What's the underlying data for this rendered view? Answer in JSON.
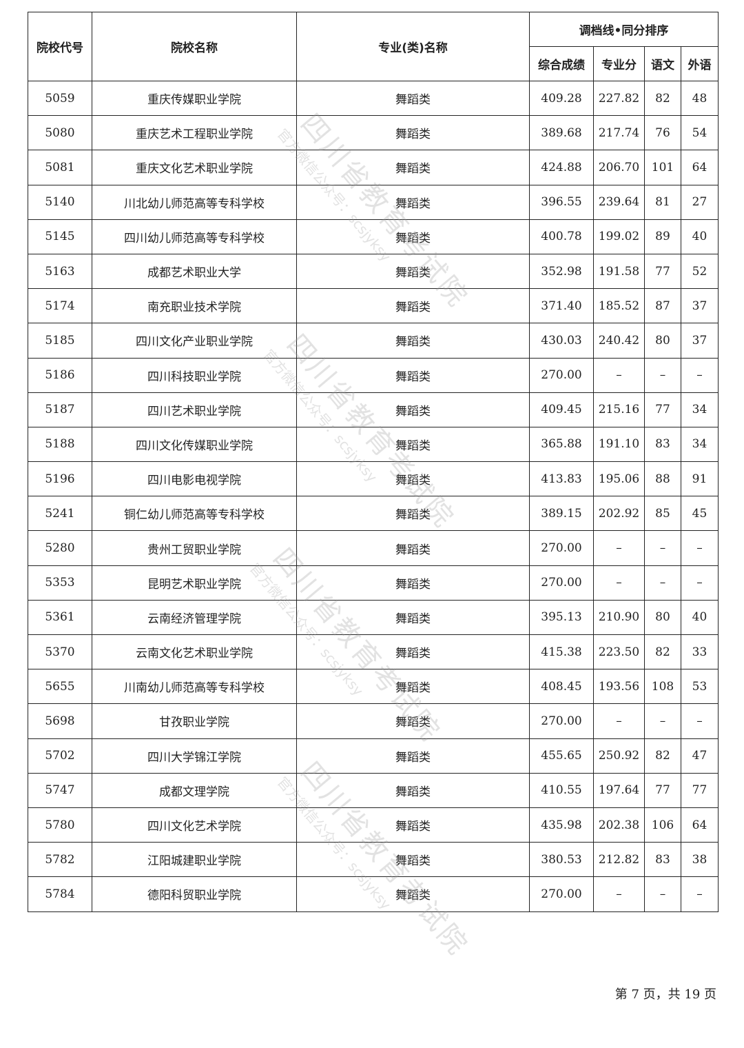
{
  "table": {
    "headers": {
      "code": "院校代号",
      "name": "院校名称",
      "major": "专业(类)名称",
      "group": "调档线•同分排序",
      "total": "综合成绩",
      "professional": "专业分",
      "chinese": "语文",
      "foreign": "外语"
    },
    "rows": [
      {
        "code": "5059",
        "name": "重庆传媒职业学院",
        "major": "舞蹈类",
        "total": "409.28",
        "professional": "227.82",
        "chinese": "82",
        "foreign": "48"
      },
      {
        "code": "5080",
        "name": "重庆艺术工程职业学院",
        "major": "舞蹈类",
        "total": "389.68",
        "professional": "217.74",
        "chinese": "76",
        "foreign": "54"
      },
      {
        "code": "5081",
        "name": "重庆文化艺术职业学院",
        "major": "舞蹈类",
        "total": "424.88",
        "professional": "206.70",
        "chinese": "101",
        "foreign": "64"
      },
      {
        "code": "5140",
        "name": "川北幼儿师范高等专科学校",
        "major": "舞蹈类",
        "total": "396.55",
        "professional": "239.64",
        "chinese": "81",
        "foreign": "27"
      },
      {
        "code": "5145",
        "name": "四川幼儿师范高等专科学校",
        "major": "舞蹈类",
        "total": "400.78",
        "professional": "199.02",
        "chinese": "89",
        "foreign": "40"
      },
      {
        "code": "5163",
        "name": "成都艺术职业大学",
        "major": "舞蹈类",
        "total": "352.98",
        "professional": "191.58",
        "chinese": "77",
        "foreign": "52"
      },
      {
        "code": "5174",
        "name": "南充职业技术学院",
        "major": "舞蹈类",
        "total": "371.40",
        "professional": "185.52",
        "chinese": "87",
        "foreign": "37"
      },
      {
        "code": "5185",
        "name": "四川文化产业职业学院",
        "major": "舞蹈类",
        "total": "430.03",
        "professional": "240.42",
        "chinese": "80",
        "foreign": "37"
      },
      {
        "code": "5186",
        "name": "四川科技职业学院",
        "major": "舞蹈类",
        "total": "270.00",
        "professional": "–",
        "chinese": "–",
        "foreign": "–"
      },
      {
        "code": "5187",
        "name": "四川艺术职业学院",
        "major": "舞蹈类",
        "total": "409.45",
        "professional": "215.16",
        "chinese": "77",
        "foreign": "34"
      },
      {
        "code": "5188",
        "name": "四川文化传媒职业学院",
        "major": "舞蹈类",
        "total": "365.88",
        "professional": "191.10",
        "chinese": "83",
        "foreign": "34"
      },
      {
        "code": "5196",
        "name": "四川电影电视学院",
        "major": "舞蹈类",
        "total": "413.83",
        "professional": "195.06",
        "chinese": "88",
        "foreign": "91"
      },
      {
        "code": "5241",
        "name": "铜仁幼儿师范高等专科学校",
        "major": "舞蹈类",
        "total": "389.15",
        "professional": "202.92",
        "chinese": "85",
        "foreign": "45"
      },
      {
        "code": "5280",
        "name": "贵州工贸职业学院",
        "major": "舞蹈类",
        "total": "270.00",
        "professional": "–",
        "chinese": "–",
        "foreign": "–"
      },
      {
        "code": "5353",
        "name": "昆明艺术职业学院",
        "major": "舞蹈类",
        "total": "270.00",
        "professional": "–",
        "chinese": "–",
        "foreign": "–"
      },
      {
        "code": "5361",
        "name": "云南经济管理学院",
        "major": "舞蹈类",
        "total": "395.13",
        "professional": "210.90",
        "chinese": "80",
        "foreign": "40"
      },
      {
        "code": "5370",
        "name": "云南文化艺术职业学院",
        "major": "舞蹈类",
        "total": "415.38",
        "professional": "223.50",
        "chinese": "82",
        "foreign": "33"
      },
      {
        "code": "5655",
        "name": "川南幼儿师范高等专科学校",
        "major": "舞蹈类",
        "total": "408.45",
        "professional": "193.56",
        "chinese": "108",
        "foreign": "53"
      },
      {
        "code": "5698",
        "name": "甘孜职业学院",
        "major": "舞蹈类",
        "total": "270.00",
        "professional": "–",
        "chinese": "–",
        "foreign": "–"
      },
      {
        "code": "5702",
        "name": "四川大学锦江学院",
        "major": "舞蹈类",
        "total": "455.65",
        "professional": "250.92",
        "chinese": "82",
        "foreign": "47"
      },
      {
        "code": "5747",
        "name": "成都文理学院",
        "major": "舞蹈类",
        "total": "410.55",
        "professional": "197.64",
        "chinese": "77",
        "foreign": "77"
      },
      {
        "code": "5780",
        "name": "四川文化艺术学院",
        "major": "舞蹈类",
        "total": "435.98",
        "professional": "202.38",
        "chinese": "106",
        "foreign": "64"
      },
      {
        "code": "5782",
        "name": "江阳城建职业学院",
        "major": "舞蹈类",
        "total": "380.53",
        "professional": "212.82",
        "chinese": "83",
        "foreign": "38"
      },
      {
        "code": "5784",
        "name": "德阳科贸职业学院",
        "major": "舞蹈类",
        "total": "270.00",
        "professional": "–",
        "chinese": "–",
        "foreign": "–"
      }
    ]
  },
  "watermark": {
    "title": "四川省教育考试院",
    "subtitle": "官方微信公众号：scsjyksy"
  },
  "footer": {
    "page_info": "第 7 页，共 19 页"
  }
}
